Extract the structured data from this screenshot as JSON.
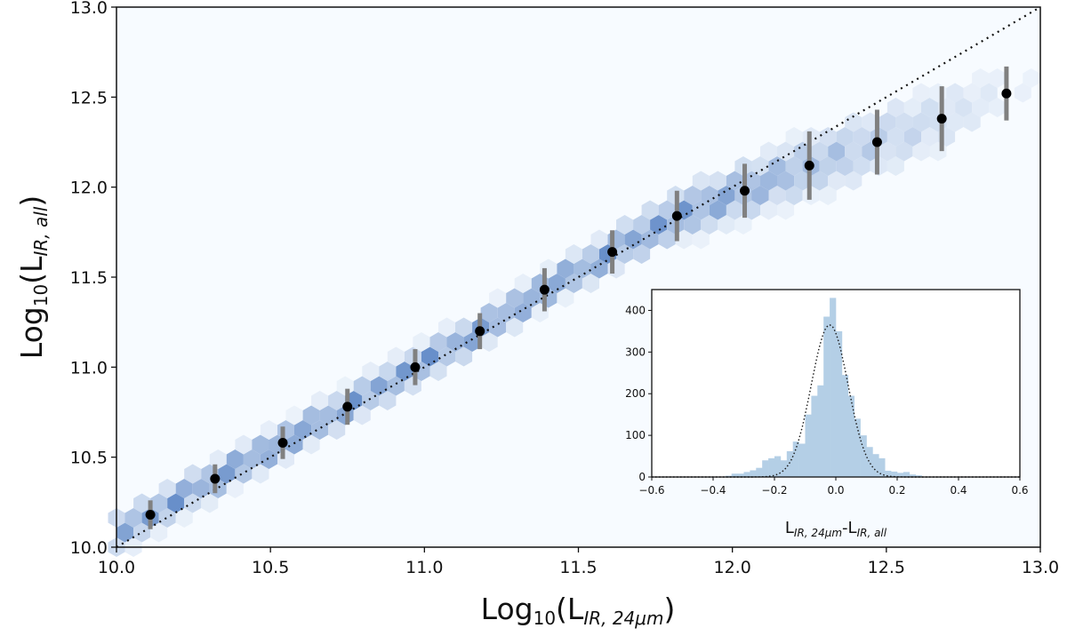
{
  "chart_data": [
    {
      "type": "scatter",
      "name": "main",
      "xlabel": "Log10(L_IR,24um)",
      "ylabel": "Log10(L_IR,all)",
      "xlabel_parts": {
        "base": "Log",
        "sub": "10",
        "open": "(L",
        "subscript": "IR, 24μm",
        "close": ")"
      },
      "ylabel_parts": {
        "base": "Log",
        "sub": "10",
        "open": "(L",
        "subscript": "IR, all",
        "close": ")"
      },
      "xlim": [
        10.0,
        13.0
      ],
      "ylim": [
        10.0,
        13.0
      ],
      "xticks": [
        "10.0",
        "10.5",
        "11.0",
        "11.5",
        "12.0",
        "12.5",
        "13.0"
      ],
      "yticks": [
        "10.0",
        "10.5",
        "11.0",
        "11.5",
        "12.0",
        "12.5",
        "13.0"
      ],
      "one_to_one_line": true,
      "background": "hexbin density (Blues)",
      "points": {
        "x": [
          10.11,
          10.32,
          10.54,
          10.75,
          10.97,
          11.18,
          11.39,
          11.61,
          11.82,
          12.04,
          12.25,
          12.47,
          12.68,
          12.89
        ],
        "y": [
          10.18,
          10.38,
          10.58,
          10.78,
          11.0,
          11.2,
          11.43,
          11.64,
          11.84,
          11.98,
          12.12,
          12.25,
          12.38,
          12.52
        ],
        "err": [
          0.08,
          0.08,
          0.09,
          0.1,
          0.1,
          0.1,
          0.12,
          0.12,
          0.14,
          0.15,
          0.19,
          0.18,
          0.18,
          0.15
        ]
      },
      "colors": {
        "points": "#000000",
        "errorbars": "#808080",
        "hex_low": "#f7fbff",
        "hex_high": "#6f8fc4"
      }
    },
    {
      "type": "bar",
      "name": "inset-histogram",
      "xlabel_parts": {
        "a": "L",
        "a_sub": "IR, 24μm",
        "dash": "-",
        "b": "L",
        "b_sub": "IR, all"
      },
      "xlim": [
        -0.6,
        0.6
      ],
      "ylim": [
        0,
        450
      ],
      "xticks": [
        "−0.6",
        "−0.4",
        "−0.2",
        "0.0",
        "0.2",
        "0.4",
        "0.6"
      ],
      "xtick_values": [
        -0.6,
        -0.4,
        -0.2,
        0.0,
        0.2,
        0.4,
        0.6
      ],
      "yticks": [
        "0",
        "100",
        "200",
        "300",
        "400"
      ],
      "ytick_values": [
        0,
        100,
        200,
        300,
        400
      ],
      "bin_width": 0.02,
      "bin_left_edges": [
        -0.36,
        -0.34,
        -0.32,
        -0.3,
        -0.28,
        -0.26,
        -0.24,
        -0.22,
        -0.2,
        -0.18,
        -0.16,
        -0.14,
        -0.12,
        -0.1,
        -0.08,
        -0.06,
        -0.04,
        -0.02,
        0.0,
        0.02,
        0.04,
        0.06,
        0.08,
        0.1,
        0.12,
        0.14,
        0.16,
        0.18,
        0.2,
        0.22,
        0.24,
        0.26
      ],
      "counts": [
        3,
        8,
        8,
        12,
        16,
        22,
        40,
        45,
        50,
        40,
        62,
        85,
        80,
        150,
        195,
        220,
        385,
        430,
        350,
        245,
        195,
        140,
        100,
        72,
        55,
        45,
        15,
        13,
        10,
        12,
        6,
        4
      ],
      "gaussian_fit": {
        "mean": -0.02,
        "sigma": 0.06,
        "amplitude": 365
      },
      "colors": {
        "bars": "#b4cfe6",
        "fit": "#1a1a1a"
      }
    }
  ]
}
